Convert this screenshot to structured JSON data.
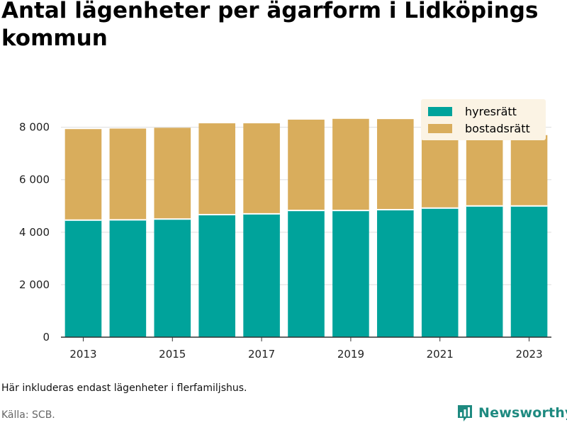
{
  "title": "Antal lägenheter per ägarform i Lidköpings kommun",
  "note": "Här inkluderas endast lägenheter i flerfamiljshus.",
  "source": "Källa: SCB.",
  "brand": {
    "name": "Newsworthy",
    "color": "#1e8a80",
    "icon": "bar-chart-badge-icon"
  },
  "colors": {
    "hyresratt": "#00a39b",
    "bostadsratt": "#d9ad5c",
    "grid": "#dddddd",
    "axis": "#333333"
  },
  "chart_data": {
    "type": "bar",
    "stacked": true,
    "categories": [
      "2013",
      "2014",
      "2015",
      "2016",
      "2017",
      "2018",
      "2019",
      "2020",
      "2021",
      "2022",
      "2023"
    ],
    "x_tick_labels": [
      "2013",
      "2015",
      "2017",
      "2019",
      "2021",
      "2023"
    ],
    "series": [
      {
        "name": "hyresrätt",
        "color": "#00a39b",
        "values": [
          4460,
          4470,
          4500,
          4670,
          4700,
          4830,
          4830,
          4860,
          4920,
          5000,
          5000
        ]
      },
      {
        "name": "bostadsrätt",
        "color": "#d9ad5c",
        "values": [
          3470,
          3480,
          3480,
          3480,
          3450,
          3460,
          3490,
          3450,
          3480,
          3480,
          2700
        ]
      }
    ],
    "y_ticks": [
      0,
      2000,
      4000,
      6000,
      8000
    ],
    "y_tick_labels": [
      "0",
      "2 000",
      "4 000",
      "6 000",
      "8 000"
    ],
    "ylim": [
      0,
      8800
    ],
    "grid": true,
    "legend_position": "top-right"
  }
}
